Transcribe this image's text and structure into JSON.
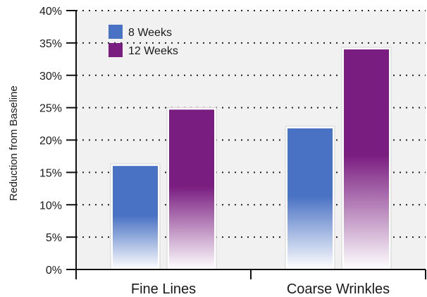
{
  "chart_data": {
    "type": "bar",
    "ylabel": "Reduction from Baseline",
    "categories": [
      "Fine Lines",
      "Coarse Wrinkles"
    ],
    "series": [
      {
        "name": "8 Weeks",
        "values": [
          16,
          21.8
        ],
        "color": "#4a72c4"
      },
      {
        "name": "12 Weeks",
        "values": [
          24.7,
          34
        ],
        "color": "#7a1d80"
      }
    ],
    "ylim": [
      0,
      40
    ],
    "yticks": [
      0,
      5,
      10,
      15,
      20,
      25,
      30,
      35,
      40
    ],
    "ytick_labels": [
      "0%",
      "5%",
      "10%",
      "15%",
      "20%",
      "25%",
      "30%",
      "35%",
      "40%"
    ],
    "grid": "dotted horizontal",
    "legend_position": "top-left"
  }
}
